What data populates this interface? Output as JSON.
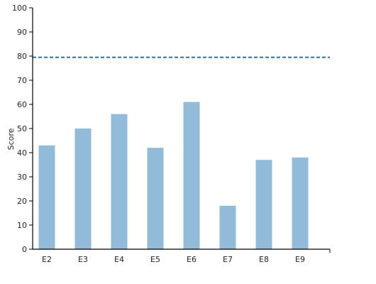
{
  "chart_data": {
    "type": "bar",
    "categories": [
      "E2",
      "E3",
      "E4",
      "E5",
      "E6",
      "E7",
      "E8",
      "E9"
    ],
    "values": [
      43,
      50,
      56,
      42,
      61,
      18,
      37,
      38
    ],
    "ylabel": "Score",
    "xlabel": "",
    "ylim": [
      0,
      100
    ],
    "yticks": [
      0,
      10,
      20,
      30,
      40,
      50,
      60,
      70,
      80,
      90,
      100
    ],
    "reference_line": {
      "value": 79.5,
      "style": "dashed"
    },
    "grid": false,
    "colors": {
      "bar": "#92bbd9",
      "reference_line": "#2f6f9f",
      "axis": "#000000"
    }
  }
}
